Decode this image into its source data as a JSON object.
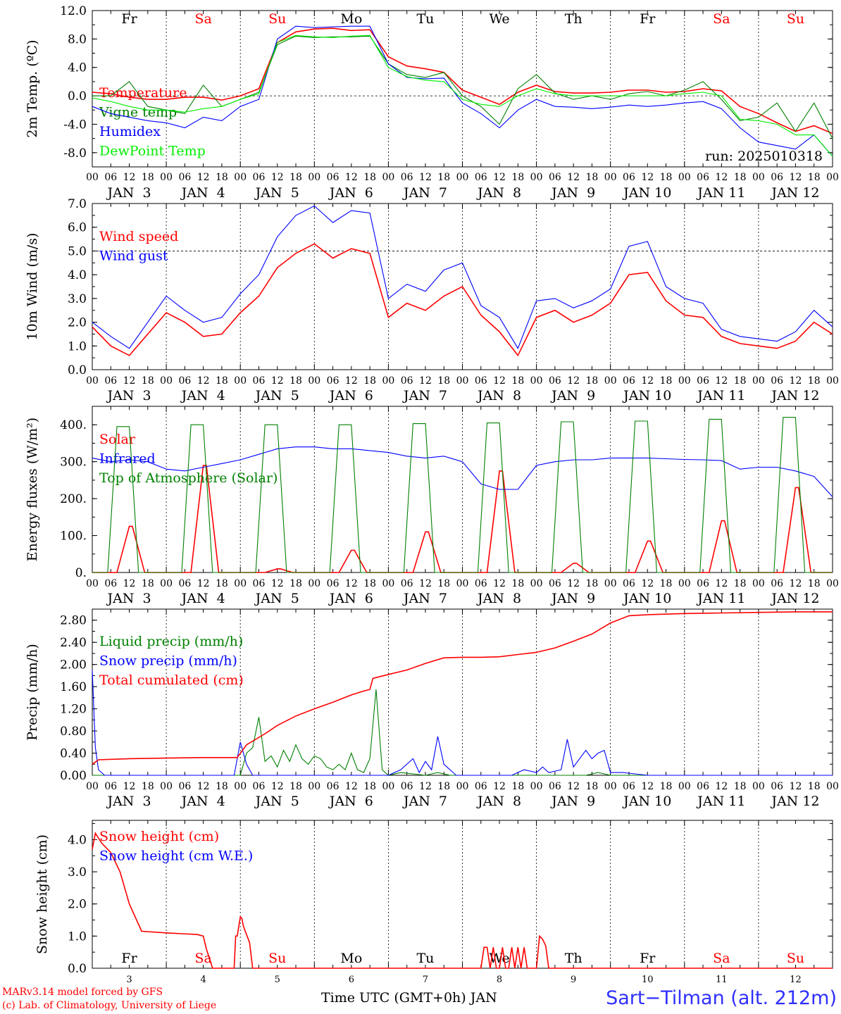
{
  "meteogram": {
    "run_label": "run: 2025010318",
    "station": "Sart−Tilman (alt. 212m)",
    "footer_line1": "MARv3.14 model forced by GFS",
    "footer_line2": "(c) Lab. of Climatology, University of Liege",
    "bottom_axis_label": "Time UTC (GMT+0h) JAN",
    "colors": {
      "red": "#ff0000",
      "blue": "#0000ff",
      "dark_green": "#008000",
      "light_green": "#00ee00",
      "weekend": "#ff0000"
    }
  },
  "chart_data": [
    {
      "type": "line",
      "ylabel": "2m Temp. (ºC)",
      "ylim": [
        -10,
        12
      ],
      "yticks": [
        "-8.0",
        "-4.0",
        "0.0",
        "4.0",
        "8.0",
        "12.0"
      ],
      "ytick_values": [
        -8,
        -4,
        0,
        4,
        8,
        12
      ],
      "dashed_line_at": 0,
      "xlim_hours": [
        0,
        240
      ],
      "day_labels": [
        "Fr",
        "Sa",
        "Su",
        "Mo",
        "Tu",
        "We",
        "Th",
        "Fr",
        "Sa",
        "Su"
      ],
      "date_labels": [
        "JAN  3",
        "JAN  4",
        "JAN  5",
        "JAN  6",
        "JAN  7",
        "JAN  8",
        "JAN  9",
        "JAN 10",
        "JAN 11",
        "JAN 12"
      ],
      "hour_ticks": [
        "00",
        "06",
        "12",
        "18"
      ],
      "x": [
        0,
        6,
        12,
        18,
        24,
        30,
        36,
        42,
        48,
        54,
        60,
        66,
        72,
        78,
        84,
        90,
        96,
        102,
        108,
        114,
        120,
        126,
        132,
        138,
        144,
        150,
        156,
        162,
        168,
        174,
        180,
        186,
        192,
        198,
        204,
        210,
        216,
        222,
        228,
        234,
        240
      ],
      "series": [
        {
          "name": "Temperature",
          "color": "#ff0000",
          "values": [
            0.5,
            0.3,
            -0.2,
            -0.5,
            -0.5,
            -0.2,
            -0.2,
            -0.6,
            0.0,
            1.0,
            7.5,
            9.0,
            9.4,
            9.5,
            9.2,
            9.3,
            5.5,
            4.2,
            3.8,
            3.3,
            0.8,
            -0.2,
            -1.2,
            0.5,
            1.5,
            0.6,
            0.4,
            0.4,
            0.5,
            0.8,
            0.8,
            0.5,
            0.6,
            1.0,
            0.7,
            -1.5,
            -2.5,
            -3.8,
            -5.0,
            -4.2,
            -5.3
          ]
        },
        {
          "name": "Vigne temp",
          "color": "#008000",
          "values": [
            0.0,
            0.0,
            2.0,
            -1.5,
            -2.0,
            -2.5,
            1.5,
            -1.5,
            -0.5,
            0.5,
            7.2,
            8.4,
            8.2,
            8.3,
            8.3,
            8.4,
            4.5,
            3.0,
            2.6,
            3.3,
            0.0,
            -1.5,
            -4.0,
            1.0,
            3.0,
            0.4,
            -0.5,
            0.0,
            -0.5,
            0.3,
            0.6,
            0.0,
            0.8,
            2.0,
            -0.5,
            -3.5,
            -3.0,
            -1.0,
            -5.0,
            -1.0,
            -6.0
          ]
        },
        {
          "name": "Humidex",
          "color": "#0000ff",
          "values": [
            -1.5,
            -2.5,
            -3.0,
            -3.5,
            -3.8,
            -4.5,
            -3.0,
            -3.5,
            -1.5,
            -0.5,
            8.0,
            9.8,
            9.6,
            9.7,
            9.8,
            9.8,
            4.5,
            2.6,
            2.4,
            2.5,
            -1.0,
            -2.5,
            -4.5,
            -2.0,
            -0.5,
            -1.5,
            -1.6,
            -1.8,
            -1.6,
            -1.3,
            -1.5,
            -1.3,
            -1.0,
            -0.8,
            -1.8,
            -4.5,
            -6.5,
            -7.0,
            -7.5,
            -5.5,
            -8.5
          ]
        },
        {
          "name": "DewPoint Temp",
          "color": "#00ee00",
          "values": [
            -0.3,
            -0.8,
            -1.5,
            -2.0,
            -2.0,
            -2.3,
            -1.8,
            -1.5,
            -0.5,
            0.3,
            7.5,
            8.5,
            8.3,
            8.2,
            8.4,
            8.5,
            4.0,
            2.7,
            2.2,
            2.0,
            -0.5,
            -1.2,
            -1.5,
            0.0,
            1.0,
            0.3,
            0.0,
            0.0,
            0.0,
            0.0,
            0.0,
            0.0,
            0.3,
            0.5,
            0.0,
            -3.3,
            -3.5,
            -4.0,
            -5.5,
            -5.5,
            -8.5
          ]
        }
      ]
    },
    {
      "type": "line",
      "ylabel": "10m Wind (m/s)",
      "ylim": [
        0,
        7
      ],
      "yticks": [
        "0.0",
        "1.0",
        "2.0",
        "3.0",
        "4.0",
        "5.0",
        "6.0",
        "7.0"
      ],
      "ytick_values": [
        0,
        1,
        2,
        3,
        4,
        5,
        6,
        7
      ],
      "dashed_line_at": 5,
      "xlim_hours": [
        0,
        240
      ],
      "date_labels": [
        "JAN  3",
        "JAN  4",
        "JAN  5",
        "JAN  6",
        "JAN  7",
        "JAN  8",
        "JAN  9",
        "JAN 10",
        "JAN 11",
        "JAN 12"
      ],
      "hour_ticks": [
        "00",
        "06",
        "12",
        "18"
      ],
      "x": [
        0,
        6,
        12,
        18,
        24,
        30,
        36,
        42,
        48,
        54,
        60,
        66,
        72,
        78,
        84,
        90,
        96,
        102,
        108,
        114,
        120,
        126,
        132,
        138,
        144,
        150,
        156,
        162,
        168,
        174,
        180,
        186,
        192,
        198,
        204,
        210,
        216,
        222,
        228,
        234,
        240
      ],
      "series": [
        {
          "name": "Wind speed",
          "color": "#ff0000",
          "values": [
            1.8,
            1.0,
            0.6,
            1.5,
            2.4,
            2.0,
            1.4,
            1.5,
            2.4,
            3.1,
            4.3,
            4.9,
            5.3,
            4.7,
            5.1,
            4.9,
            2.2,
            2.8,
            2.5,
            3.1,
            3.5,
            2.3,
            1.6,
            0.6,
            2.2,
            2.5,
            2.0,
            2.3,
            2.8,
            4.0,
            4.1,
            2.9,
            2.3,
            2.2,
            1.4,
            1.1,
            1.0,
            0.9,
            1.2,
            2.0,
            1.5
          ]
        },
        {
          "name": "Wind gust",
          "color": "#0000ff",
          "values": [
            2.0,
            1.4,
            0.9,
            2.0,
            3.1,
            2.5,
            2.0,
            2.2,
            3.2,
            4.0,
            5.6,
            6.5,
            6.9,
            6.2,
            6.7,
            6.6,
            3.0,
            3.6,
            3.3,
            4.2,
            4.5,
            2.7,
            2.2,
            0.9,
            2.9,
            3.0,
            2.6,
            2.9,
            3.4,
            5.2,
            5.4,
            3.5,
            3.0,
            2.8,
            1.7,
            1.4,
            1.3,
            1.2,
            1.6,
            2.5,
            1.8
          ]
        }
      ]
    },
    {
      "type": "line",
      "ylabel": "Energy fluxes (W/m²)",
      "ylim": [
        0,
        450
      ],
      "yticks": [
        "0.",
        "100.",
        "200.",
        "300.",
        "400."
      ],
      "ytick_values": [
        0,
        100,
        200,
        300,
        400
      ],
      "xlim_hours": [
        0,
        240
      ],
      "date_labels": [
        "JAN  3",
        "JAN  4",
        "JAN  5",
        "JAN  6",
        "JAN  7",
        "JAN  8",
        "JAN  9",
        "JAN 10",
        "JAN 11",
        "JAN 12"
      ],
      "hour_ticks": [
        "00",
        "06",
        "12",
        "18"
      ],
      "diurnal": {
        "toa_peaks": [
          395,
          400,
          400,
          400,
          403,
          405,
          408,
          410,
          415,
          420
        ],
        "solar_peaks": [
          125,
          290,
          10,
          60,
          110,
          275,
          25,
          85,
          140,
          230
        ]
      },
      "x": [
        0,
        6,
        12,
        18,
        24,
        30,
        36,
        42,
        48,
        54,
        60,
        66,
        72,
        78,
        84,
        90,
        96,
        102,
        108,
        114,
        120,
        126,
        132,
        138,
        144,
        150,
        156,
        162,
        168,
        174,
        180,
        186,
        192,
        198,
        204,
        210,
        216,
        222,
        228,
        234,
        240
      ],
      "series": [
        {
          "name": "Solar",
          "color": "#ff0000"
        },
        {
          "name": "Infrared",
          "color": "#0000ff",
          "values": [
            310,
            300,
            305,
            300,
            280,
            275,
            285,
            295,
            305,
            320,
            335,
            340,
            340,
            335,
            335,
            330,
            325,
            315,
            310,
            315,
            300,
            240,
            225,
            225,
            290,
            300,
            305,
            305,
            310,
            310,
            310,
            308,
            306,
            305,
            303,
            280,
            285,
            285,
            275,
            260,
            205
          ]
        },
        {
          "name": "Top of Atmosphere (Solar)",
          "color": "#008000"
        }
      ]
    },
    {
      "type": "line",
      "ylabel": "Precip (mm/h)",
      "ylim": [
        0,
        3.0
      ],
      "yticks": [
        "0.00",
        "0.40",
        "0.80",
        "1.20",
        "1.60",
        "2.00",
        "2.40",
        "2.80"
      ],
      "ytick_values": [
        0,
        0.4,
        0.8,
        1.2,
        1.6,
        2.0,
        2.4,
        2.8
      ],
      "xlim_hours": [
        0,
        240
      ],
      "date_labels": [
        "JAN  3",
        "JAN  4",
        "JAN  5",
        "JAN  6",
        "JAN  7",
        "JAN  8",
        "JAN  9",
        "JAN 10",
        "JAN 11",
        "JAN 12"
      ],
      "hour_ticks": [
        "00",
        "06",
        "12",
        "18"
      ],
      "series": [
        {
          "name": "Liquid precip (mm/h)",
          "color": "#008000",
          "x": [
            0,
            48,
            50,
            52,
            54,
            56,
            58,
            60,
            62,
            64,
            66,
            68,
            70,
            72,
            74,
            76,
            78,
            80,
            82,
            84,
            86,
            88,
            90,
            92,
            94,
            96,
            100,
            108,
            112,
            116,
            160,
            164,
            168,
            240
          ],
          "values": [
            0.0,
            0.0,
            0.4,
            0.5,
            1.05,
            0.25,
            0.35,
            0.15,
            0.45,
            0.25,
            0.55,
            0.3,
            0.2,
            0.35,
            0.3,
            0.15,
            0.1,
            0.2,
            0.1,
            0.4,
            0.1,
            0.05,
            0.3,
            1.55,
            0.1,
            0.0,
            0.05,
            0.0,
            0.05,
            0.0,
            0.0,
            0.05,
            0.0,
            0.0
          ]
        },
        {
          "name": "Snow precip (mm/h)",
          "color": "#0000ff",
          "x": [
            0,
            1,
            2,
            4,
            46,
            48,
            50,
            52,
            96,
            100,
            104,
            106,
            108,
            110,
            112,
            114,
            118,
            136,
            140,
            144,
            146,
            148,
            152,
            154,
            156,
            158,
            160,
            162,
            164,
            166,
            168,
            172,
            180,
            240
          ],
          "values": [
            1.9,
            0.5,
            0.1,
            0.0,
            0.0,
            0.6,
            0.2,
            0.0,
            0.0,
            0.1,
            0.3,
            0.05,
            0.25,
            0.1,
            0.7,
            0.2,
            0.0,
            0.0,
            0.1,
            0.05,
            0.15,
            0.05,
            0.1,
            0.65,
            0.15,
            0.3,
            0.45,
            0.3,
            0.4,
            0.45,
            0.05,
            0.05,
            0.0,
            0.0
          ]
        },
        {
          "name": "Total cumulated (cm)",
          "color": "#ff0000",
          "x": [
            0,
            2,
            12,
            24,
            36,
            47,
            50,
            56,
            60,
            66,
            72,
            78,
            84,
            88,
            90,
            91,
            96,
            102,
            108,
            114,
            120,
            126,
            132,
            138,
            144,
            150,
            156,
            162,
            168,
            174,
            180,
            192,
            204,
            216,
            228,
            240
          ],
          "values": [
            0.2,
            0.28,
            0.3,
            0.31,
            0.32,
            0.32,
            0.55,
            0.75,
            0.9,
            1.07,
            1.2,
            1.32,
            1.45,
            1.52,
            1.55,
            1.75,
            1.82,
            1.9,
            2.02,
            2.12,
            2.13,
            2.13,
            2.14,
            2.18,
            2.22,
            2.3,
            2.42,
            2.55,
            2.75,
            2.88,
            2.9,
            2.92,
            2.93,
            2.94,
            2.95,
            2.95
          ]
        }
      ]
    },
    {
      "type": "line",
      "ylabel": "Snow height (cm)",
      "ylim": [
        0,
        4.6
      ],
      "yticks": [
        "0.0",
        "1.0",
        "2.0",
        "3.0",
        "4.0"
      ],
      "ytick_values": [
        0,
        1,
        2,
        3,
        4
      ],
      "xlim_hours": [
        0,
        240
      ],
      "day_labels": [
        "Fr",
        "Sa",
        "Su",
        "Mo",
        "Tu",
        "We",
        "Th",
        "Fr",
        "Sa",
        "Su"
      ],
      "day_numbers": [
        "3",
        "4",
        "5",
        "6",
        "7",
        "8",
        "9",
        "10",
        "11",
        "12"
      ],
      "series": [
        {
          "name": "Snow height (cm)",
          "color": "#ff0000",
          "x": [
            0,
            1,
            3,
            6,
            9,
            12,
            16,
            24,
            34,
            36,
            37,
            39,
            40,
            46,
            46.5,
            47,
            48,
            48.5,
            49,
            51,
            52,
            52.5,
            120,
            126,
            127,
            128,
            129,
            130,
            131,
            132,
            133,
            134,
            135,
            136,
            137,
            138,
            139,
            140,
            141,
            142,
            144,
            145,
            146,
            147,
            148,
            149,
            150,
            180,
            240
          ],
          "values": [
            3.7,
            4.2,
            3.9,
            3.6,
            3.0,
            2.0,
            1.15,
            1.1,
            1.05,
            1.0,
            0.6,
            0.0,
            0.0,
            0.0,
            1.0,
            1.0,
            1.6,
            1.55,
            1.3,
            0.8,
            0.0,
            0.0,
            0.0,
            0.0,
            0.65,
            0.65,
            0.0,
            0.65,
            0.0,
            0.0,
            0.65,
            0.0,
            0.0,
            0.65,
            0.0,
            0.65,
            0.0,
            0.65,
            0.0,
            0.0,
            0.0,
            1.0,
            0.9,
            0.7,
            0.0,
            0.0,
            0.0,
            0.0,
            0.0
          ]
        },
        {
          "name": "Snow height (cm W.E.)",
          "color": "#0000ff"
        }
      ]
    }
  ]
}
